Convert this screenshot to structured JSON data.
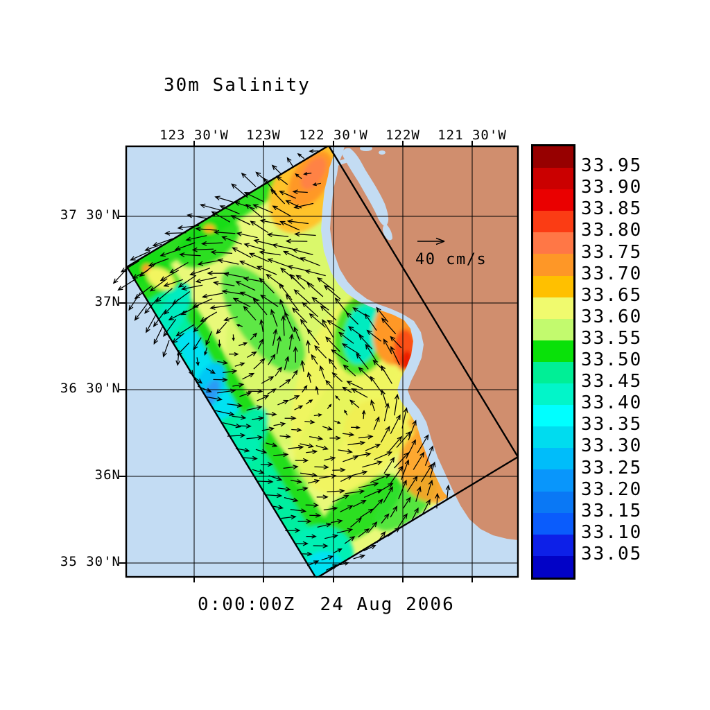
{
  "title": "30m Salinity",
  "timestamp": "0:00:00Z  24 Aug 2006",
  "map": {
    "x_axis_labels": [
      "123 30'W",
      "123W",
      "122 30'W",
      "122W",
      "121 30'W"
    ],
    "y_axis_labels": [
      "37 30'N",
      "37N",
      "36 30'N",
      "36N",
      "35 30'N"
    ],
    "vector_scale_label": "40 cm/s"
  },
  "colorbar": {
    "labels": [
      "33.95",
      "33.90",
      "33.85",
      "33.80",
      "33.75",
      "33.70",
      "33.65",
      "33.60",
      "33.55",
      "33.50",
      "33.45",
      "33.40",
      "33.35",
      "33.30",
      "33.25",
      "33.20",
      "33.15",
      "33.10",
      "33.05"
    ],
    "colors": [
      "#970000",
      "#cb0000",
      "#ea0000",
      "#fb3c14",
      "#ff7746",
      "#fe9727",
      "#ffc000",
      "#f0fa6e",
      "#c2fa6e",
      "#09e109",
      "#00ef96",
      "#02f5c9",
      "#00ffff",
      "#00dcef",
      "#00bdfa",
      "#0996fb",
      "#0a78f5",
      "#0a5cfc",
      "#0d20e8",
      "#0202c6"
    ]
  },
  "colors": {
    "ocean": "#c3dcf3",
    "land": "#d08e6e",
    "grid": "#000000",
    "vectors": "#000000"
  },
  "chart_data": {
    "type": "heatmap",
    "title": "30m Salinity",
    "x_ticks": [
      "123 30'W",
      "123W",
      "122 30'W",
      "122W",
      "121 30'W"
    ],
    "y_ticks": [
      "37 30'N",
      "37N",
      "36 30'N",
      "36N",
      "35 30'N"
    ],
    "colorbar_levels": [
      33.05,
      33.1,
      33.15,
      33.2,
      33.25,
      33.3,
      33.35,
      33.4,
      33.45,
      33.5,
      33.55,
      33.6,
      33.65,
      33.7,
      33.75,
      33.8,
      33.85,
      33.9,
      33.95
    ],
    "colorbar_units": "salinity",
    "vector_reference": {
      "value": 40,
      "units": "cm/s"
    },
    "valid_time": "0:00:00Z 24 Aug 2006",
    "overlay": "current velocity vectors on rotated model domain over California coast"
  }
}
